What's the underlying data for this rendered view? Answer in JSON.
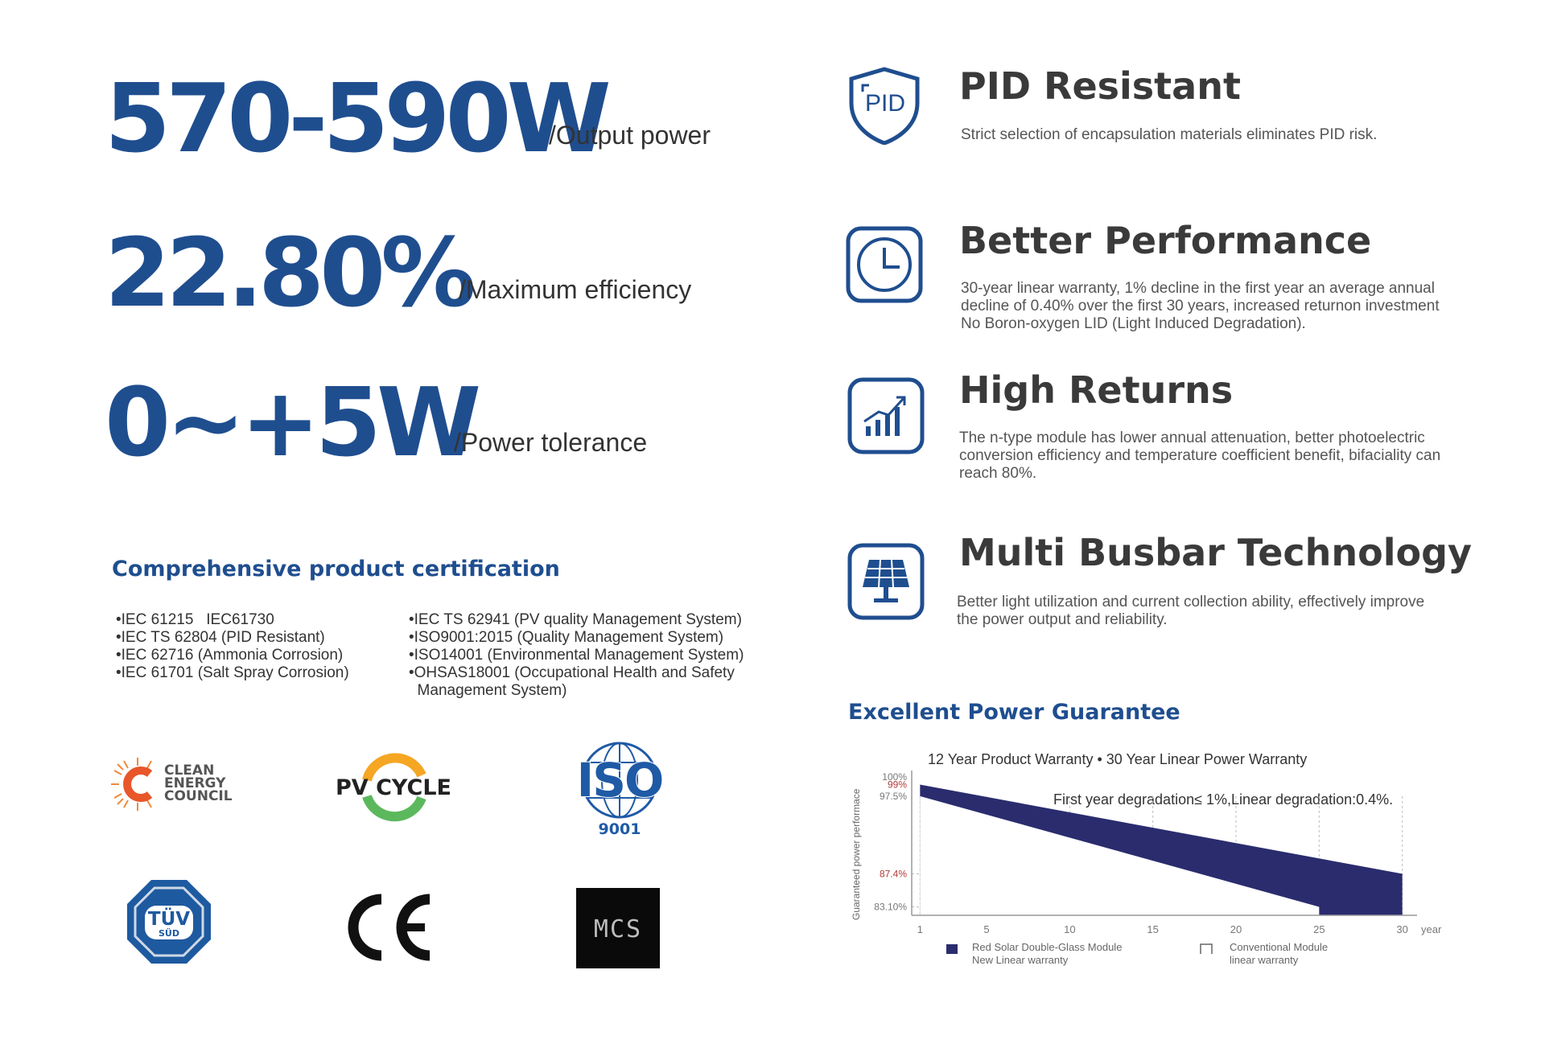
{
  "specs": [
    {
      "value": "570-590W",
      "label": "/Output power"
    },
    {
      "value": "22.80%",
      "label": "/Maximum efficiency"
    },
    {
      "value": "0~+5W",
      "label": "/Power tolerance"
    }
  ],
  "features": [
    {
      "title": "PID Resistant",
      "desc": "Strict selection of encapsulation materials eliminates PID risk.",
      "icon": "shield-pid-icon",
      "icon_text": "PID"
    },
    {
      "title": "Better Performance",
      "desc": "30-year linear warranty, 1% decline in the first year  an average annual decline of 0.40% over the first 30 years, increased returnon investment No Boron-oxygen LID (Light Induced Degradation).",
      "icon": "clock-icon"
    },
    {
      "title": "High Returns",
      "desc": "The n-type module has lower annual attenuation, better photoelectric conversion efficiency and temperature coefficient benefit, bifaciality can reach 80%.",
      "icon": "growth-chart-icon"
    },
    {
      "title": "Multi Busbar Technology",
      "desc": "Better light utilization and current collection ability, effectively improve the power output and reliability.",
      "icon": "solar-panel-icon"
    }
  ],
  "certification": {
    "title": "Comprehensive product certification",
    "left": [
      "•IEC 61215   IEC61730",
      "•IEC TS 62804 (PID Resistant)",
      "•IEC 62716 (Ammonia Corrosion)",
      "•IEC 61701 (Salt Spray Corrosion)"
    ],
    "right": [
      "•IEC TS 62941 (PV quality Management System)",
      "•ISO9001:2015 (Quality Management System)",
      "•ISO14001 (Environmental Management System)",
      "•OHSAS18001 (Occupational Health and Safety",
      "  Management System)"
    ]
  },
  "logos": {
    "clean_energy": [
      "CLEAN",
      "ENERGY",
      "COUNCIL"
    ],
    "pv_cycle": "PV CYCLE",
    "iso": "ISO",
    "iso_number": "9001",
    "tuv": "TÜV",
    "tuv_sub": "SÜD",
    "ce": "CE",
    "mcs": "MCS"
  },
  "guarantee": {
    "title": "Excellent Power Guarantee",
    "subtitle": "12 Year Product Warranty • 30 Year Linear Power Warranty",
    "note": "First year degradation≤ 1%,Linear degradation:0.4%."
  },
  "chart_data": {
    "type": "area",
    "ylabel": "Guaranteed power performace",
    "xlabel": "year",
    "x_ticks": [
      "1",
      "5",
      "10",
      "15",
      "20",
      "25",
      "30"
    ],
    "y_ticks": [
      "100%",
      "99%",
      "97.5%",
      "87.4%",
      "83.10%"
    ],
    "xlim": [
      0.5,
      30.5
    ],
    "ylim": [
      82,
      100
    ],
    "series": [
      {
        "name": "Red Solar Double-Glass Module New Linear warranty",
        "x": [
          1,
          30
        ],
        "y": [
          99,
          87.4
        ],
        "color": "#2a2c6e"
      },
      {
        "name": "Conventional Module linear warranty",
        "x": [
          1,
          25
        ],
        "y": [
          97.5,
          83.1
        ],
        "color": "#ffffff"
      }
    ],
    "legend": [
      {
        "line1": "Red Solar Double-Glass Module",
        "line2": "New Linear warranty"
      },
      {
        "line1": "Conventional Module",
        "line2": "linear warranty"
      }
    ],
    "colors": {
      "navy": "#2a2c6e",
      "red_label": "#b03a3a",
      "grid": "#bbbbbb"
    }
  }
}
